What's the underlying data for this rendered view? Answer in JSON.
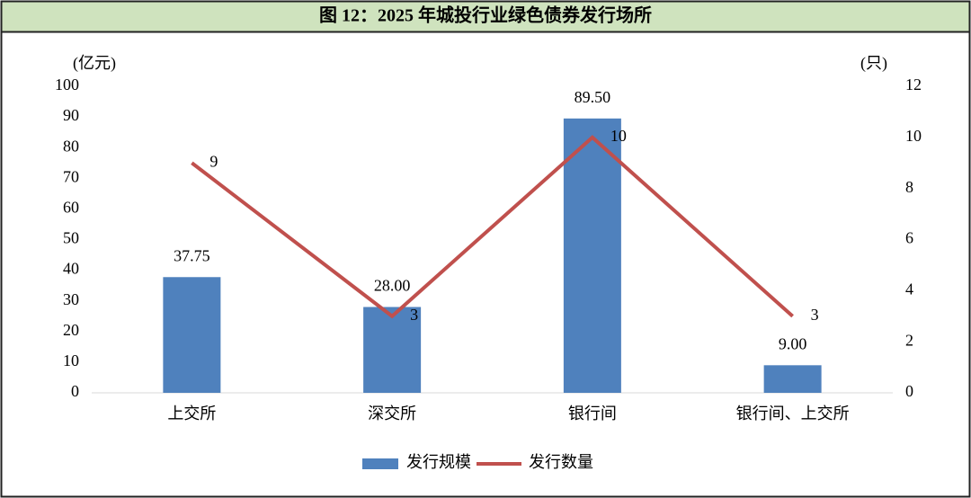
{
  "chart_data": {
    "type": "bar",
    "title": "图 12：2025 年城投行业绿色债券发行场所",
    "y_label": "(亿元)",
    "y2_label": "(只)",
    "categories": [
      "上交所",
      "深交所",
      "银行间",
      "银行间、上交所"
    ],
    "series": [
      {
        "name": "发行规模",
        "type": "bar",
        "color": "#4f81bd",
        "values": [
          37.75,
          28,
          89.5,
          9
        ],
        "value_labels": [
          "37.75",
          "28.00",
          "89.50",
          "9.00"
        ]
      },
      {
        "name": "发行数量",
        "type": "line",
        "axis": "y2",
        "color": "#c0504d",
        "values": [
          9,
          3,
          10,
          3
        ]
      }
    ],
    "ylim": [
      0,
      100
    ],
    "yticks": [
      0,
      10,
      20,
      30,
      40,
      50,
      60,
      70,
      80,
      90,
      100
    ],
    "y2lim": [
      0,
      12
    ],
    "y2ticks": [
      0,
      2,
      4,
      6,
      8,
      10,
      12
    ],
    "legend": "bottom"
  }
}
